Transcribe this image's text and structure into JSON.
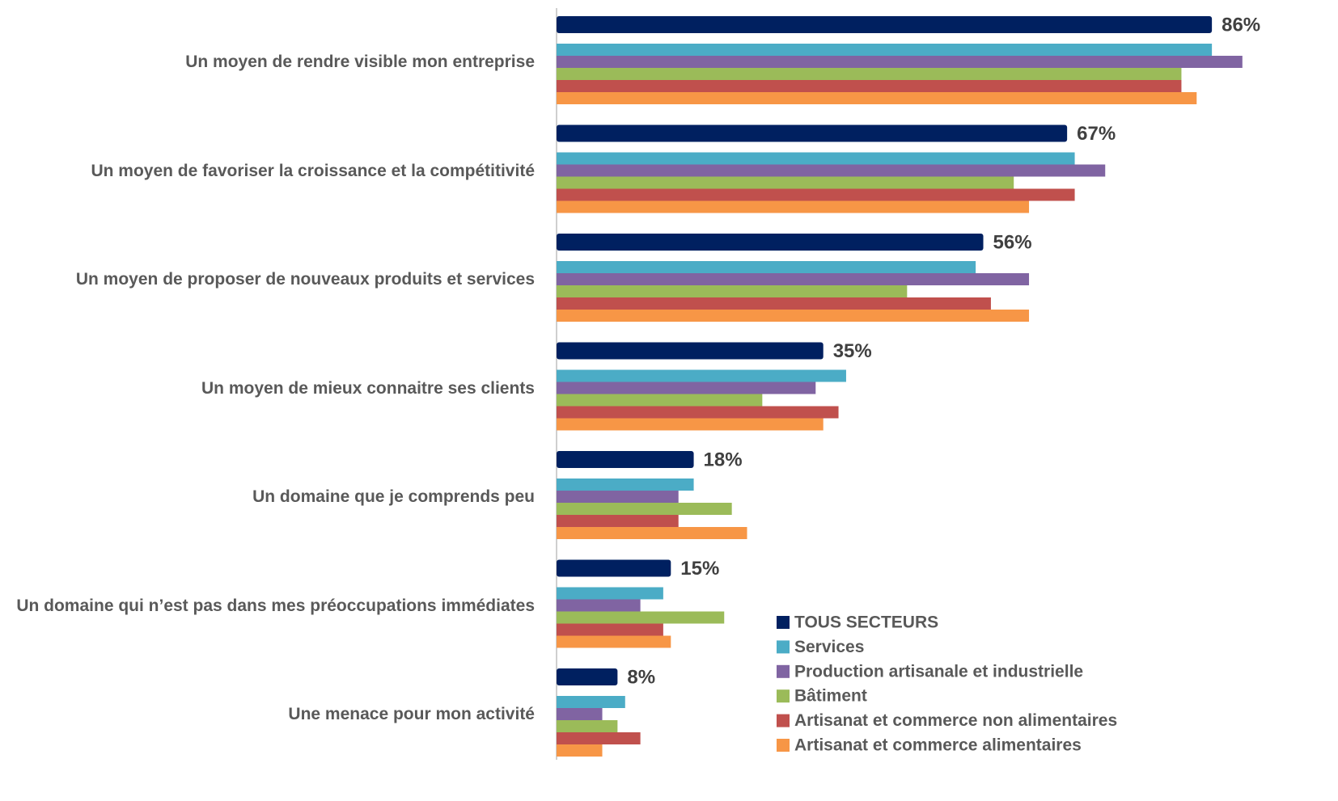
{
  "chart_data": {
    "type": "bar",
    "orientation": "horizontal",
    "categories": [
      "Un moyen de rendre visible mon entreprise",
      "Un moyen de favoriser la croissance et la compétitivité",
      "Un moyen de proposer de nouveaux produits et services",
      "Un moyen de mieux connaitre ses clients",
      "Un domaine que je comprends peu",
      "Un domaine qui n’est pas dans mes préoccupations immédiates",
      "Une menace pour mon activité"
    ],
    "series": [
      {
        "name": "TOUS SECTEURS",
        "color": "#002060",
        "values": [
          86,
          67,
          56,
          35,
          18,
          15,
          8
        ],
        "value_labels": [
          "86%",
          "67%",
          "56%",
          "35%",
          "18%",
          "15%",
          "8%"
        ]
      },
      {
        "name": "Services",
        "color": "#4bacc6",
        "values": [
          86,
          68,
          55,
          38,
          18,
          14,
          9
        ]
      },
      {
        "name": "Production artisanale et industrielle",
        "color": "#8064a2",
        "values": [
          90,
          72,
          62,
          34,
          16,
          11,
          6
        ]
      },
      {
        "name": "Bâtiment",
        "color": "#9bbb59",
        "values": [
          82,
          60,
          46,
          27,
          23,
          22,
          8
        ]
      },
      {
        "name": "Artisanat et commerce non alimentaires",
        "color": "#c0504d",
        "values": [
          82,
          68,
          57,
          37,
          16,
          14,
          11
        ]
      },
      {
        "name": "Artisanat et commerce alimentaires",
        "color": "#f79646",
        "values": [
          84,
          62,
          62,
          35,
          25,
          15,
          6
        ]
      }
    ],
    "legend": "bottom-right"
  }
}
